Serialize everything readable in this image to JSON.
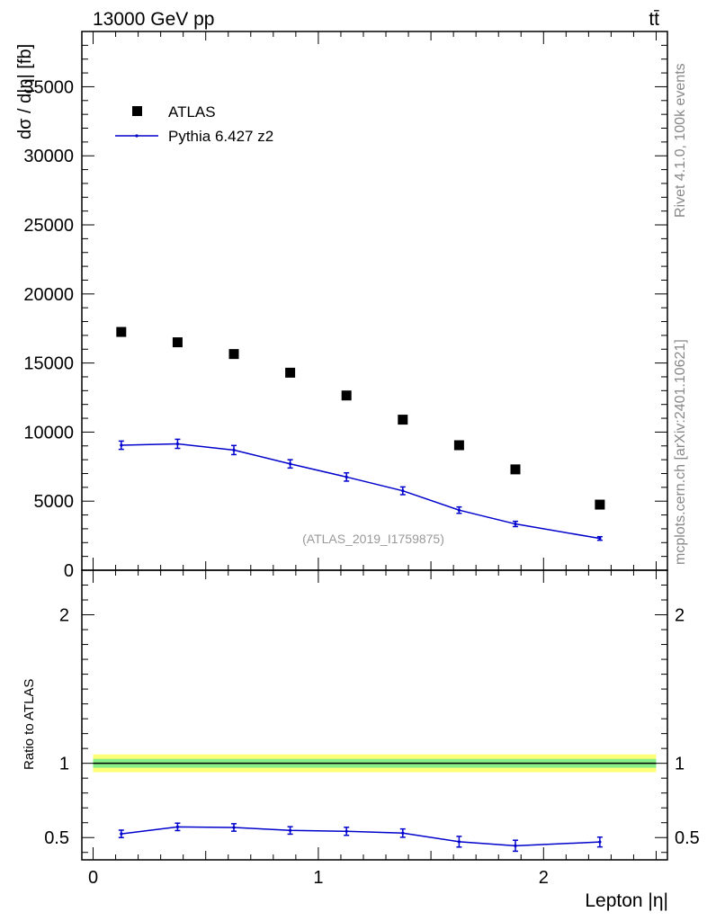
{
  "header": {
    "left": "13000 GeV pp",
    "right": "tt̄"
  },
  "side_labels": {
    "rivet": "Rivet 4.1.0,  100k events",
    "mcplots": "mcplots.cern.ch [arXiv:2401.10621]"
  },
  "colors": {
    "mc": "#0000cc",
    "data": "#000000",
    "band_outer": "#ffff77",
    "band_inner": "#88ee88",
    "watermark": "#999999",
    "side_text": "#888888"
  },
  "chart_data": [
    {
      "type": "scatter",
      "panel": "main",
      "title": "",
      "xlabel": "Lepton |η|",
      "ylabel": "dσ / d|η| [fb]",
      "xlim": [
        -0.05,
        2.55
      ],
      "ylim": [
        0,
        39000
      ],
      "yticks": [
        0,
        5000,
        10000,
        15000,
        20000,
        25000,
        30000,
        35000
      ],
      "ytick_labels": [
        "0",
        "5000",
        "10000",
        "15000",
        "20000",
        "25000",
        "30000",
        "35000"
      ],
      "watermark": "(ATLAS_2019_I1759875)",
      "legend": {
        "position": "top-left",
        "entries": [
          "ATLAS",
          "Pythia 6.427 z2"
        ]
      },
      "series": [
        {
          "name": "ATLAS",
          "style": "markers",
          "x": [
            0.125,
            0.375,
            0.625,
            0.875,
            1.125,
            1.375,
            1.625,
            1.875,
            2.25
          ],
          "y": [
            17250,
            16500,
            15650,
            14300,
            12650,
            10900,
            9050,
            7300,
            4750
          ]
        },
        {
          "name": "Pythia 6.427 z2",
          "style": "line",
          "x": [
            0.125,
            0.375,
            0.625,
            0.875,
            1.125,
            1.375,
            1.625,
            1.875,
            2.25
          ],
          "y": [
            9050,
            9150,
            8700,
            7700,
            6750,
            5750,
            4350,
            3350,
            2300
          ],
          "yerr": [
            300,
            330,
            330,
            300,
            300,
            280,
            230,
            190,
            130
          ]
        }
      ]
    },
    {
      "type": "line",
      "panel": "ratio",
      "xlabel": "Lepton |η|",
      "ylabel": "Ratio to ATLAS",
      "xlim": [
        -0.05,
        2.55
      ],
      "ylim": [
        0.35,
        2.3
      ],
      "yticks": [
        0.5,
        1,
        2
      ],
      "ytick_labels": [
        "0.5",
        "1",
        "2"
      ],
      "xticks": [
        0,
        1,
        2
      ],
      "xtick_labels": [
        "0",
        "1",
        "2"
      ],
      "reference": 1.0,
      "band_outer": 0.06,
      "band_inner": 0.03,
      "series": [
        {
          "name": "Pythia 6.427 z2 / ATLAS",
          "x": [
            0.125,
            0.375,
            0.625,
            0.875,
            1.125,
            1.375,
            1.625,
            1.875,
            2.25
          ],
          "y": [
            0.525,
            0.572,
            0.568,
            0.548,
            0.542,
            0.53,
            0.472,
            0.445,
            0.47
          ],
          "yerr": [
            0.025,
            0.025,
            0.025,
            0.025,
            0.027,
            0.028,
            0.036,
            0.037,
            0.033
          ]
        }
      ]
    }
  ]
}
